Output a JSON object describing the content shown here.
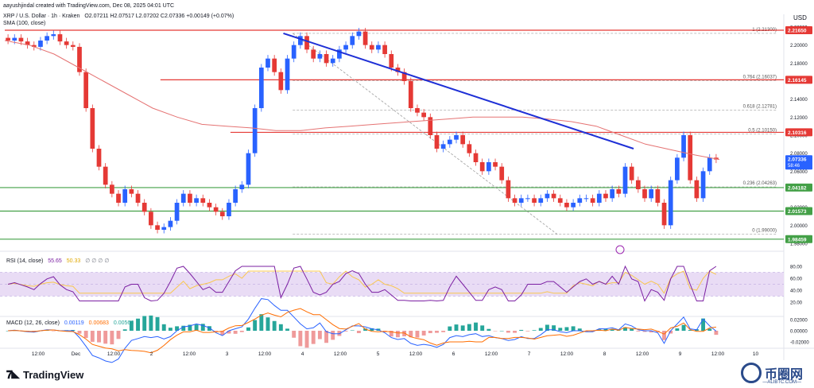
{
  "header": {
    "publisher_line": "aayushjindal created with TradingView.com, Dec 08, 2025 04:01 UTC",
    "symbol_line": "XRP / U.S. Dollar · 1h · Kraken",
    "ohlc": "O2.07211 H2.07517 L2.07202 C2.07336 +0.00149 (+0.07%)",
    "sma_label": "SMA (100, close)"
  },
  "currency": "USD",
  "rsi_legend": {
    "name": "RSI (14, close)",
    "v1": "55.65",
    "v2": "50.33",
    "extra": "∅ ∅ ∅ ∅"
  },
  "macd_legend": {
    "name": "MACD (12, 26, close)",
    "v1": "0.00119",
    "v2": "0.00683",
    "v3": "0.00564"
  },
  "brand": "TradingView",
  "watermark": {
    "cn": "币圈网",
    "sub": "—ALIBTC.COM—"
  },
  "colors": {
    "up": "#2962ff",
    "down": "#e53935",
    "sma": "#e57373",
    "trend": "#1e2fd6",
    "red_level": "#e53935",
    "green_level": "#43a047",
    "rsi": "#7b1fa2",
    "rsi_ma": "#f9c74f",
    "rsi_band": "#e9dcf5"
  },
  "chart_data": {
    "type": "candlestick",
    "price_axis": {
      "min": 1.98,
      "max": 2.22,
      "ticks": [
        "2.22000",
        "2.20000",
        "2.18000",
        "2.16000",
        "2.14000",
        "2.12000",
        "2.10000",
        "2.08000",
        "2.06000",
        "2.04000",
        "2.02000",
        "2.00000",
        "1.98000"
      ]
    },
    "time_labels": [
      "12:00",
      "Dec",
      "12:00",
      "2",
      "12:00",
      "3",
      "12:00",
      "4",
      "12:00",
      "5",
      "12:00",
      "6",
      "12:00",
      "7",
      "12:00",
      "8",
      "12:00",
      "9",
      "12:00",
      "10"
    ],
    "price_badges": [
      {
        "value": 2.2165,
        "label": "2.21650",
        "color": "#e53935"
      },
      {
        "value": 2.16145,
        "label": "2.16145",
        "color": "#e53935"
      },
      {
        "value": 2.10316,
        "label": "2.10316",
        "color": "#e53935"
      },
      {
        "value": 2.07336,
        "label": "2.07336",
        "color": "#2962ff",
        "sub": "58:46"
      },
      {
        "value": 2.04182,
        "label": "2.04182",
        "color": "#43a047"
      },
      {
        "value": 2.01573,
        "label": "2.01573",
        "color": "#43a047"
      },
      {
        "value": 1.98459,
        "label": "1.98459",
        "color": "#43a047"
      }
    ],
    "fib_levels": [
      {
        "label": "1 (2.21300)",
        "value": 2.213
      },
      {
        "label": "0.764 (2.16037)",
        "value": 2.16037
      },
      {
        "label": "0.618 (2.12781)",
        "value": 2.12781
      },
      {
        "label": "0.5 (2.10150)",
        "value": 2.1015
      },
      {
        "label": "0.236 (2.04263)",
        "value": 2.04263
      },
      {
        "label": "0 (1.99000)",
        "value": 1.99
      }
    ],
    "resistance_levels": [
      2.2165,
      2.16145,
      2.10316
    ],
    "support_levels": [
      2.04182,
      2.01573,
      1.98459
    ],
    "trend_line": {
      "from": {
        "t": 0.358,
        "price": 2.213
      },
      "to": {
        "t": 0.808,
        "price": 2.085
      }
    },
    "fib_diagonal": {
      "from": {
        "t": 0.37,
        "price": 2.213
      },
      "to": {
        "t": 0.71,
        "price": 1.99
      }
    },
    "closes": [
      2.205,
      2.208,
      2.204,
      2.2,
      2.198,
      2.205,
      2.21,
      2.212,
      2.204,
      2.2,
      2.198,
      2.17,
      2.13,
      2.085,
      2.065,
      2.045,
      2.035,
      2.025,
      2.04,
      2.035,
      2.025,
      2.015,
      2.0,
      1.995,
      1.998,
      2.005,
      2.025,
      2.035,
      2.025,
      2.03,
      2.025,
      2.02,
      2.015,
      2.01,
      2.025,
      2.04,
      2.045,
      2.08,
      2.13,
      2.175,
      2.185,
      2.17,
      2.15,
      2.185,
      2.2,
      2.21,
      2.195,
      2.185,
      2.19,
      2.18,
      2.185,
      2.195,
      2.2,
      2.21,
      2.215,
      2.2,
      2.195,
      2.2,
      2.19,
      2.175,
      2.17,
      2.16,
      2.13,
      2.125,
      2.12,
      2.1,
      2.085,
      2.09,
      2.095,
      2.1,
      2.09,
      2.08,
      2.07,
      2.06,
      2.07,
      2.065,
      2.05,
      2.03,
      2.025,
      2.03,
      2.03,
      2.025,
      2.03,
      2.035,
      2.03,
      2.025,
      2.02,
      2.025,
      2.03,
      2.03,
      2.025,
      2.035,
      2.03,
      2.04,
      2.035,
      2.065,
      2.05,
      2.04,
      2.03,
      2.04,
      2.025,
      2.0,
      2.05,
      2.075,
      2.1,
      2.05,
      2.03,
      2.06,
      2.075,
      2.073
    ],
    "sma": [
      2.205,
      2.2,
      2.19,
      2.175,
      2.16,
      2.145,
      2.13,
      2.12,
      2.112,
      2.11,
      2.108,
      2.105,
      2.105,
      2.108,
      2.11,
      2.112,
      2.114,
      2.116,
      2.118,
      2.12,
      2.12,
      2.12,
      2.118,
      2.115,
      2.11,
      2.1,
      2.09,
      2.084,
      2.078,
      2.073
    ],
    "rsi": {
      "ylim": [
        0,
        100
      ],
      "ticks": [
        "80.00",
        "60.00",
        "40.00",
        "20.00"
      ],
      "band": [
        30,
        70
      ]
    },
    "macd": {
      "ticks": [
        "0.02000",
        "0.00000",
        "-0.02000"
      ]
    }
  }
}
